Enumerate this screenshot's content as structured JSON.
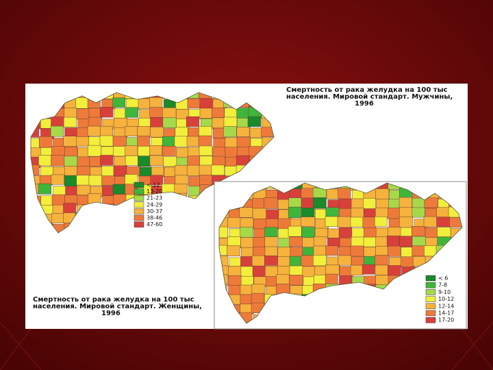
{
  "maps": [
    {
      "title": [
        "Смертность от рака желудка на 100 тыс",
        "населения. Мировой стандарт. Мужчины,",
        "1996"
      ],
      "legend": [
        {
          "label": "< 12",
          "color": "#1a8a2a"
        },
        {
          "label": "13-20",
          "color": "#3fb53a"
        },
        {
          "label": "21-23",
          "color": "#a6d94a"
        },
        {
          "label": "24-29",
          "color": "#f2ee3c"
        },
        {
          "label": "30-37",
          "color": "#f5b23c"
        },
        {
          "label": "38-46",
          "color": "#ee7a3a"
        },
        {
          "label": "47-60",
          "color": "#d8403a"
        }
      ]
    },
    {
      "title": [
        "Смертность от рака желудка на 100 тыс",
        "населения. Мировой стандарт. Женщины,",
        "1996"
      ],
      "legend": [
        {
          "label": "< 6",
          "color": "#1a8a2a"
        },
        {
          "label": "7-8",
          "color": "#3fb53a"
        },
        {
          "label": "9-10",
          "color": "#a6d94a"
        },
        {
          "label": "10-12",
          "color": "#f2ee3c"
        },
        {
          "label": "12-14",
          "color": "#f5b23c"
        },
        {
          "label": "14-17",
          "color": "#ee7a3a"
        },
        {
          "label": "17-20",
          "color": "#d8403a"
        }
      ]
    }
  ]
}
